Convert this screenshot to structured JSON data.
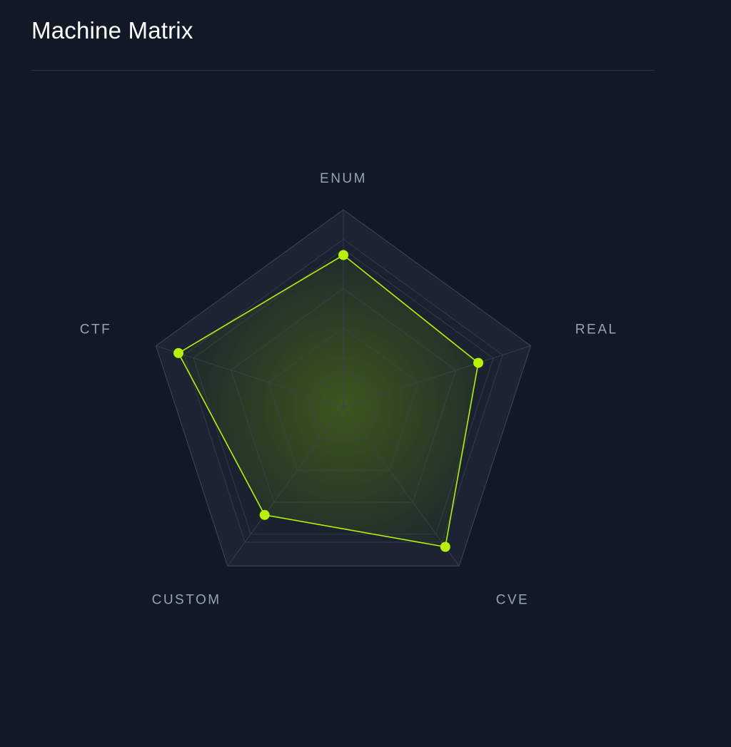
{
  "header": {
    "title": "Machine Matrix"
  },
  "chart_data": {
    "type": "radar",
    "axes": [
      "ENUM",
      "REAL",
      "CVE",
      "CUSTOM",
      "CTF"
    ],
    "scale": {
      "min": 0,
      "max": 100,
      "levels": [
        20,
        40,
        60,
        80,
        85,
        100
      ]
    },
    "series": [
      {
        "values": [
          77,
          72,
          88,
          68,
          88
        ]
      }
    ],
    "colors": {
      "series_stroke": "#b7f00a",
      "series_point": "#b7f00a",
      "fill_center": "#3e5a1c",
      "fill_edge": "#1e2a2c",
      "band_outer": "#1c2433",
      "band_inner": "#1a2230",
      "grid_line": "#3a4454",
      "axis_label": "#98a2b3"
    },
    "grid": true,
    "legend": "none"
  }
}
